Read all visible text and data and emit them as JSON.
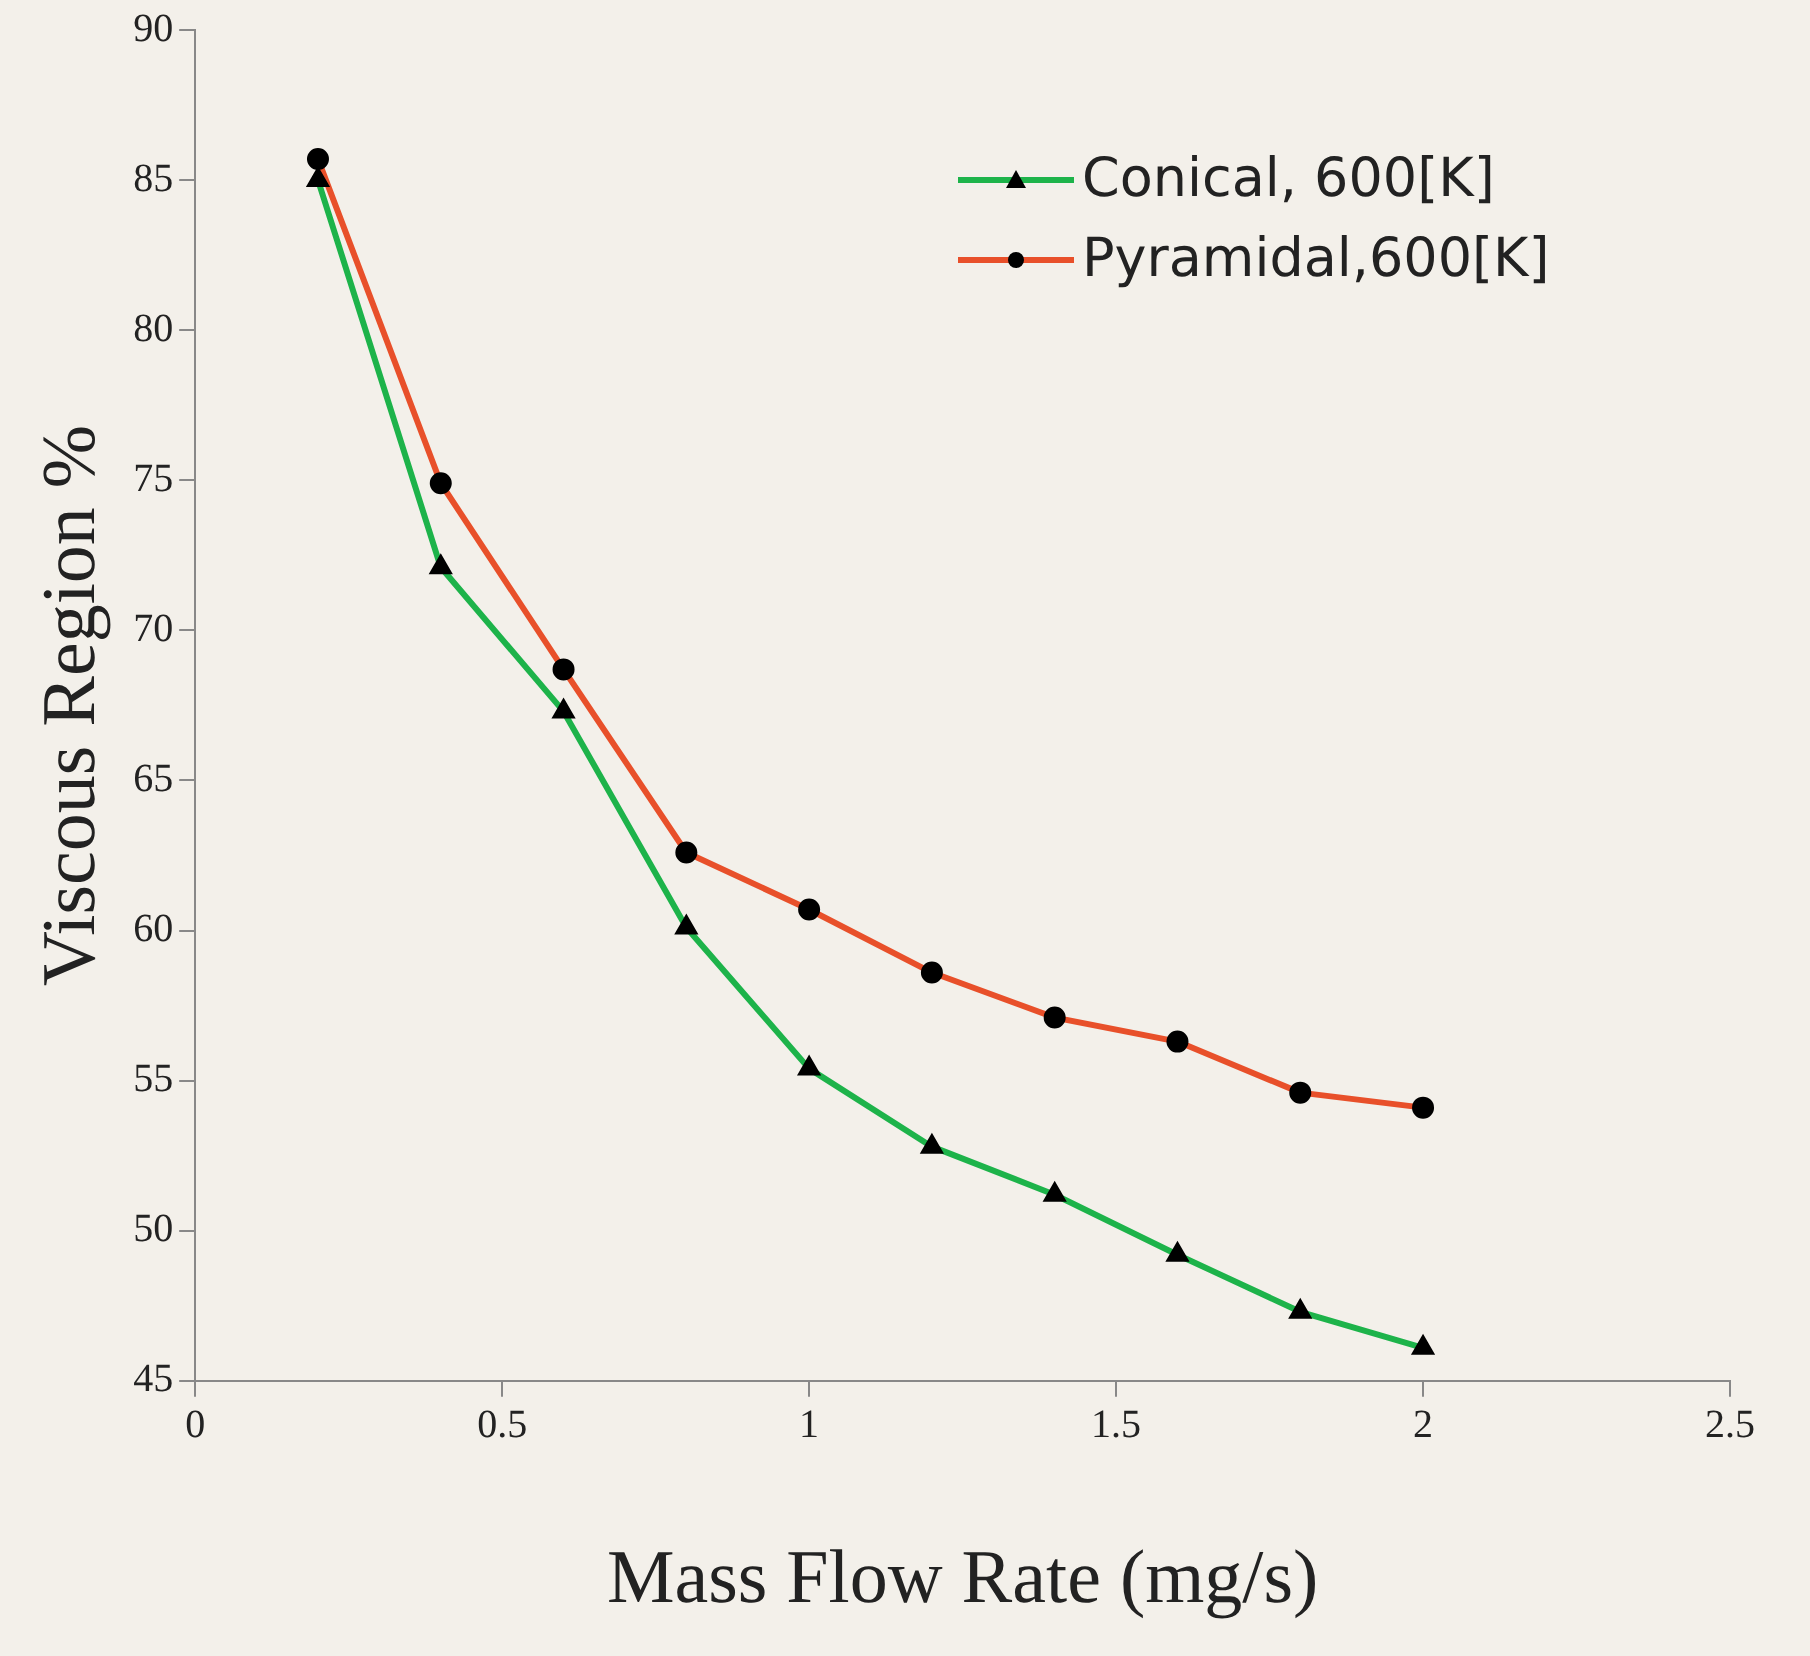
{
  "chart_data": {
    "type": "line",
    "xlabel": "Mass Flow Rate (mg/s)",
    "ylabel": "Viscous Region %",
    "x": [
      0.2,
      0.4,
      0.6,
      0.8,
      1.0,
      1.2,
      1.4,
      1.6,
      1.8,
      2.0
    ],
    "series": [
      {
        "name": "Conical, 600[K]",
        "color": "#1db34a",
        "marker": "triangle",
        "values": [
          85.0,
          72.1,
          67.3,
          60.1,
          55.4,
          52.8,
          51.2,
          49.2,
          47.3,
          46.1
        ]
      },
      {
        "name": "Pyramidal,600[K]",
        "color": "#e8502a",
        "marker": "circle",
        "values": [
          85.7,
          74.9,
          68.7,
          62.6,
          60.7,
          58.6,
          57.1,
          56.3,
          54.6,
          54.1
        ]
      }
    ],
    "xlim": [
      0,
      2.5
    ],
    "xticks": [
      0,
      0.5,
      1,
      1.5,
      2,
      2.5
    ],
    "ylim": [
      45,
      90
    ],
    "yticks": [
      45,
      50,
      55,
      60,
      65,
      70,
      75,
      80,
      85,
      90
    ],
    "grid": false,
    "legend": "top right",
    "line_style": "solid"
  }
}
